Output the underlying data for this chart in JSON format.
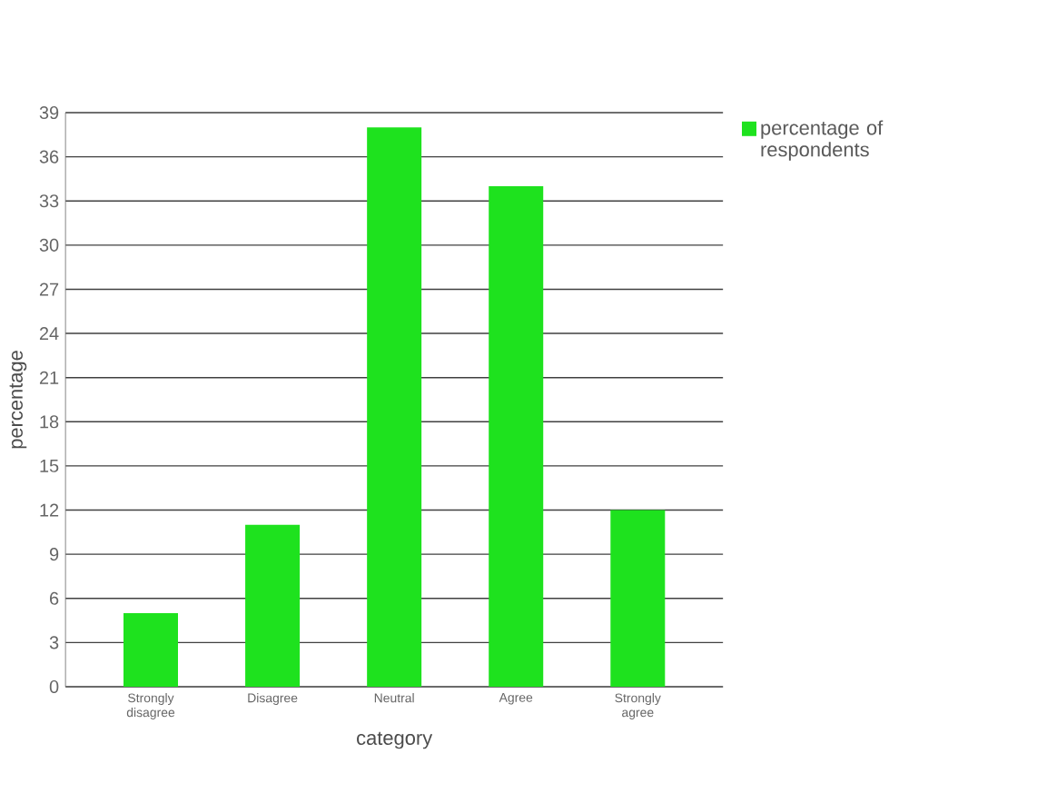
{
  "chart_data": {
    "type": "bar",
    "xlabel": "category",
    "ylabel": "percentage",
    "categories": [
      "Strongly disagree",
      "Disagree",
      "Neutral",
      "Agree",
      "Strongly agree"
    ],
    "series": [
      {
        "name": "percentage of respondents",
        "color": "#1ee21e",
        "values": [
          5,
          11,
          38,
          34,
          12
        ]
      }
    ],
    "ylim": [
      0,
      39
    ],
    "yticks": [
      0,
      3,
      6,
      9,
      12,
      15,
      18,
      21,
      24,
      27,
      30,
      33,
      36,
      39
    ],
    "grid": "y",
    "legend": "top right"
  }
}
